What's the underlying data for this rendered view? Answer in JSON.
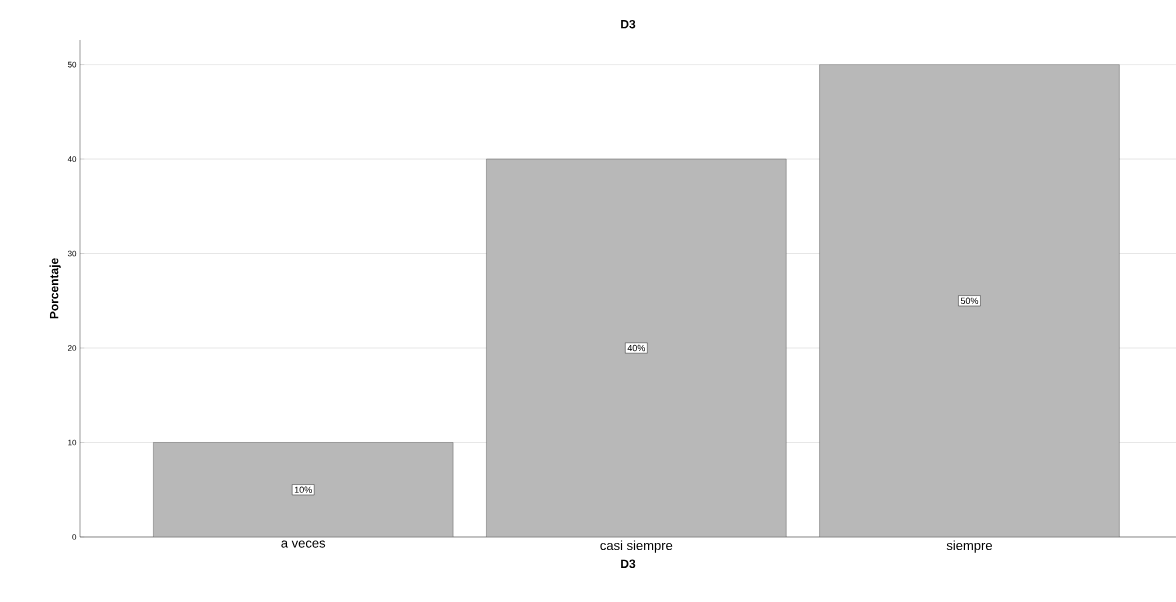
{
  "chart_data": {
    "type": "bar",
    "title": "D3",
    "xlabel": "D3",
    "ylabel": "Porcentaje",
    "categories": [
      "a veces",
      "casi siempre",
      "siempre"
    ],
    "values": [
      10,
      40,
      50
    ],
    "value_labels": [
      "10%",
      "40%",
      "50%"
    ],
    "color": "#b8b8b8",
    "ylim": [
      0,
      52.6
    ],
    "yticks": [
      0,
      10,
      20,
      30,
      40,
      50
    ],
    "grid": "y"
  }
}
